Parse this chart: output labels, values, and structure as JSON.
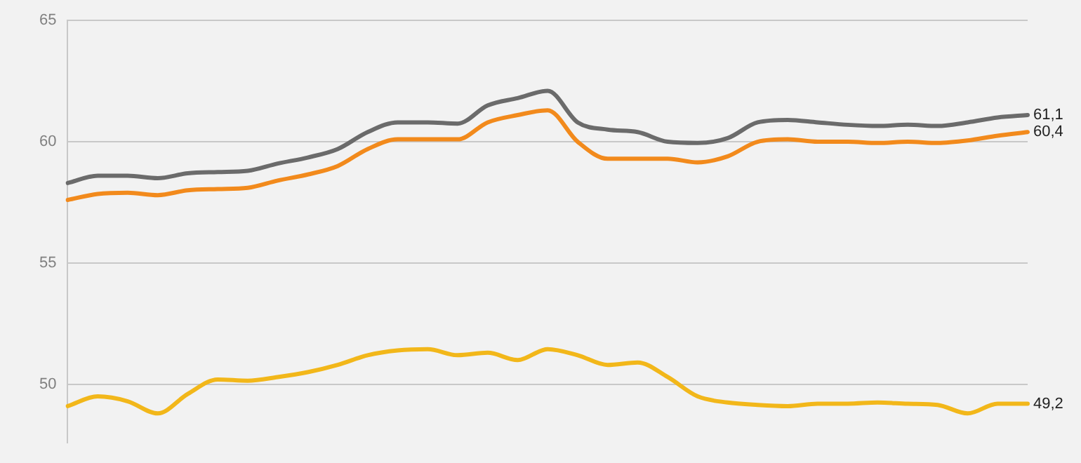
{
  "chart_data": {
    "type": "line",
    "categories": [
      null,
      null,
      null,
      null,
      null,
      null,
      null,
      null,
      null,
      null,
      null,
      null,
      null,
      null,
      null,
      null,
      null,
      null,
      null,
      null,
      null,
      null,
      null,
      null,
      null,
      null,
      null,
      null,
      null,
      null,
      null,
      null,
      null
    ],
    "series": [
      {
        "color": "#6b6b6b",
        "values": [
          58.3,
          58.6,
          58.6,
          58.5,
          58.7,
          58.75,
          58.8,
          59.1,
          59.35,
          59.7,
          60.4,
          60.8,
          60.8,
          60.75,
          61.5,
          61.8,
          62.1,
          60.8,
          60.5,
          60.4,
          60.0,
          59.95,
          60.15,
          60.8,
          60.9,
          60.8,
          60.7,
          60.65,
          60.7,
          60.65,
          60.8,
          61.0,
          61.1
        ],
        "value_labels": [
          null,
          null,
          null,
          null,
          null,
          null,
          null,
          null,
          null,
          null,
          null,
          null,
          null,
          null,
          null,
          null,
          null,
          null,
          null,
          null,
          null,
          null,
          null,
          null,
          null,
          null,
          null,
          null,
          null,
          null,
          null,
          null,
          "61,1"
        ]
      },
      {
        "color": "#f28a1c",
        "values": [
          57.6,
          57.85,
          57.9,
          57.8,
          58.0,
          58.05,
          58.1,
          58.4,
          58.65,
          59.0,
          59.7,
          60.1,
          60.1,
          60.1,
          60.8,
          61.1,
          61.3,
          60.0,
          59.3,
          59.3,
          59.3,
          59.15,
          59.4,
          60.0,
          60.1,
          60.0,
          60.0,
          59.95,
          60.0,
          59.95,
          60.05,
          60.25,
          60.4
        ],
        "value_labels": [
          null,
          null,
          null,
          null,
          null,
          null,
          null,
          null,
          null,
          null,
          null,
          null,
          null,
          null,
          null,
          null,
          null,
          null,
          null,
          null,
          null,
          null,
          null,
          null,
          null,
          null,
          null,
          null,
          null,
          null,
          null,
          null,
          "60,4"
        ]
      },
      {
        "color": "#f2b71a",
        "values": [
          49.1,
          49.5,
          49.3,
          48.8,
          49.6,
          50.2,
          50.15,
          50.3,
          50.5,
          50.8,
          51.2,
          51.4,
          51.45,
          51.2,
          51.3,
          51.0,
          51.45,
          51.2,
          50.8,
          50.9,
          50.3,
          49.5,
          49.25,
          49.15,
          49.1,
          49.2,
          49.2,
          49.25,
          49.2,
          49.15,
          48.8,
          49.2,
          49.2
        ],
        "value_labels": [
          null,
          null,
          null,
          null,
          null,
          null,
          null,
          null,
          null,
          null,
          null,
          null,
          null,
          null,
          null,
          null,
          null,
          null,
          null,
          null,
          null,
          null,
          null,
          null,
          null,
          null,
          null,
          null,
          null,
          null,
          null,
          null,
          "49,2"
        ]
      }
    ],
    "ylim": [
      47.6,
      65
    ],
    "yticks": [
      50,
      55,
      60,
      65
    ],
    "grid": "y",
    "legend": false,
    "marker": "none",
    "line_style": "solid",
    "tick_labels": "y"
  }
}
